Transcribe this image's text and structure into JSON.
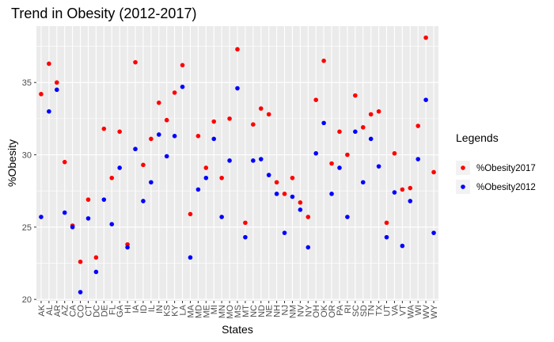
{
  "chart_data": {
    "type": "scatter",
    "title": "Trend in Obesity (2012-2017)",
    "xlabel": "States",
    "ylabel": "%Obesity",
    "legend_title": "Legends",
    "legend_position": "right",
    "grid": true,
    "ylim": [
      19.9,
      38.9
    ],
    "yticks": [
      20,
      25,
      30,
      35
    ],
    "categories": [
      "AK",
      "AL",
      "AR",
      "AZ",
      "CA",
      "CO",
      "CT",
      "DC",
      "DE",
      "FL",
      "GA",
      "HI",
      "IA",
      "ID",
      "IL",
      "IN",
      "KS",
      "KY",
      "LA",
      "MA",
      "MD",
      "ME",
      "MI",
      "MN",
      "MO",
      "MS",
      "MT",
      "NC",
      "ND",
      "NE",
      "NH",
      "NJ",
      "NM",
      "NV",
      "NY",
      "OH",
      "OK",
      "OR",
      "PA",
      "RI",
      "SC",
      "SD",
      "TN",
      "TX",
      "UT",
      "VA",
      "VT",
      "WA",
      "WI",
      "WV",
      "WY"
    ],
    "series": [
      {
        "name": "%Obesity2017",
        "color": "#ff0000",
        "values": [
          34.2,
          36.3,
          35.0,
          29.5,
          25.1,
          22.6,
          26.9,
          22.9,
          31.8,
          28.4,
          31.6,
          23.8,
          36.4,
          29.3,
          31.1,
          33.6,
          32.4,
          34.3,
          36.2,
          25.9,
          31.3,
          29.1,
          32.3,
          28.4,
          32.5,
          37.3,
          25.3,
          32.1,
          33.2,
          32.8,
          28.1,
          27.3,
          28.4,
          26.7,
          25.7,
          33.8,
          36.5,
          29.4,
          31.6,
          30.0,
          34.1,
          31.9,
          32.8,
          33.0,
          25.3,
          30.1,
          27.6,
          27.7,
          32.0,
          38.1,
          28.8
        ]
      },
      {
        "name": "%Obesity2012",
        "color": "#0000ff",
        "values": [
          25.7,
          33.0,
          34.5,
          26.0,
          25.0,
          20.5,
          25.6,
          21.9,
          26.9,
          25.2,
          29.1,
          23.6,
          30.4,
          26.8,
          28.1,
          31.4,
          29.9,
          31.3,
          34.7,
          22.9,
          27.6,
          28.4,
          31.1,
          25.7,
          29.6,
          34.6,
          24.3,
          29.6,
          29.7,
          28.6,
          27.3,
          24.6,
          27.1,
          26.2,
          23.6,
          30.1,
          32.2,
          27.3,
          29.1,
          25.7,
          31.6,
          28.1,
          31.1,
          29.2,
          24.3,
          27.4,
          23.7,
          26.8,
          29.7,
          33.8,
          24.6
        ]
      }
    ]
  }
}
